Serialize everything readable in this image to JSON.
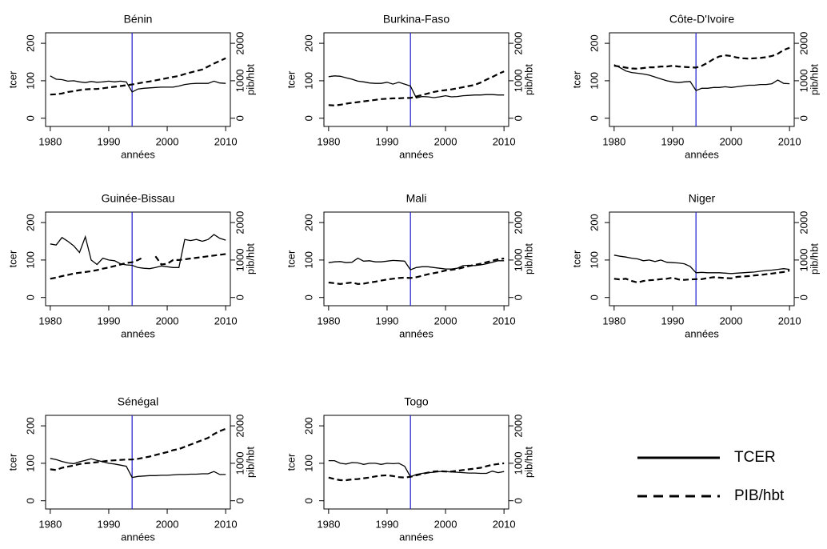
{
  "chart_data": [
    {
      "type": "line",
      "title": "Bénin",
      "xlabel": "années",
      "ylabel": "tcer",
      "y2label": "pib/hbt",
      "xlim": [
        1979.2,
        2010.8
      ],
      "xticks": [
        1980,
        1990,
        2000,
        2010
      ],
      "ylim": [
        -22,
        228
      ],
      "yticks": [
        0,
        100,
        200
      ],
      "y2lim": [
        -220,
        2280
      ],
      "y2ticks": [
        0,
        1000,
        2000
      ],
      "vline": 1994,
      "vline_color": "#2a2ad0",
      "x": [
        1980,
        1981,
        1982,
        1983,
        1984,
        1985,
        1986,
        1987,
        1988,
        1989,
        1990,
        1991,
        1992,
        1993,
        1994,
        1995,
        1996,
        1997,
        1998,
        1999,
        2000,
        2001,
        2002,
        2003,
        2004,
        2005,
        2006,
        2007,
        2008,
        2009,
        2010
      ],
      "series": [
        {
          "name": "TCER",
          "color": "#000000",
          "style": "solid",
          "values": [
            113,
            104,
            103,
            99,
            100,
            97,
            95,
            98,
            96,
            97,
            99,
            97,
            99,
            97,
            70,
            78,
            80,
            81,
            82,
            83,
            83,
            83,
            86,
            90,
            92,
            93,
            93,
            93,
            99,
            94,
            93
          ]
        },
        {
          "name": "PIB/hbt",
          "color": "#000000",
          "style": "dashed",
          "axis": "y2",
          "values": [
            630,
            640,
            660,
            700,
            720,
            750,
            770,
            780,
            780,
            800,
            820,
            840,
            860,
            880,
            900,
            930,
            960,
            980,
            1010,
            1040,
            1070,
            1100,
            1130,
            1180,
            1220,
            1260,
            1300,
            1380,
            1460,
            1530,
            1600
          ]
        }
      ]
    },
    {
      "type": "line",
      "title": "Burkina-Faso",
      "xlabel": "années",
      "ylabel": "tcer",
      "y2label": "pib/hbt",
      "xlim": [
        1979.2,
        2010.8
      ],
      "xticks": [
        1980,
        1990,
        2000,
        2010
      ],
      "ylim": [
        -22,
        228
      ],
      "yticks": [
        0,
        100,
        200
      ],
      "y2lim": [
        -220,
        2280
      ],
      "y2ticks": [
        0,
        1000,
        2000
      ],
      "vline": 1994,
      "vline_color": "#2a2ad0",
      "x": [
        1980,
        1981,
        1982,
        1983,
        1984,
        1985,
        1986,
        1987,
        1988,
        1989,
        1990,
        1991,
        1992,
        1993,
        1994,
        1995,
        1996,
        1997,
        1998,
        1999,
        2000,
        2001,
        2002,
        2003,
        2004,
        2005,
        2006,
        2007,
        2008,
        2009,
        2010
      ],
      "series": [
        {
          "name": "TCER",
          "color": "#000000",
          "style": "solid",
          "values": [
            111,
            113,
            112,
            108,
            104,
            99,
            97,
            94,
            93,
            93,
            96,
            91,
            96,
            91,
            86,
            54,
            58,
            57,
            55,
            57,
            60,
            57,
            58,
            60,
            61,
            62,
            62,
            63,
            63,
            62,
            62
          ]
        },
        {
          "name": "PIB/hbt",
          "color": "#000000",
          "style": "dashed",
          "axis": "y2",
          "values": [
            350,
            340,
            360,
            390,
            410,
            430,
            450,
            470,
            490,
            510,
            520,
            530,
            530,
            540,
            540,
            580,
            620,
            660,
            700,
            730,
            750,
            770,
            800,
            830,
            860,
            890,
            950,
            1030,
            1100,
            1180,
            1250
          ]
        }
      ]
    },
    {
      "type": "line",
      "title": "Côte-D'Ivoire",
      "xlabel": "années",
      "ylabel": "tcer",
      "y2label": "pib/hbt",
      "xlim": [
        1979.2,
        2010.8
      ],
      "xticks": [
        1980,
        1990,
        2000,
        2010
      ],
      "ylim": [
        -22,
        228
      ],
      "yticks": [
        0,
        100,
        200
      ],
      "y2lim": [
        -220,
        2280
      ],
      "y2ticks": [
        0,
        1000,
        2000
      ],
      "vline": 1994,
      "vline_color": "#2a2ad0",
      "x": [
        1980,
        1981,
        1982,
        1983,
        1984,
        1985,
        1986,
        1987,
        1988,
        1989,
        1990,
        1991,
        1992,
        1993,
        1994,
        1995,
        1996,
        1997,
        1998,
        1999,
        2000,
        2001,
        2002,
        2003,
        2004,
        2005,
        2006,
        2007,
        2008,
        2009,
        2010
      ],
      "series": [
        {
          "name": "TCER",
          "color": "#000000",
          "style": "solid",
          "values": [
            143,
            135,
            126,
            122,
            120,
            118,
            115,
            110,
            105,
            100,
            97,
            95,
            97,
            98,
            74,
            80,
            80,
            82,
            82,
            84,
            82,
            84,
            86,
            88,
            88,
            90,
            90,
            92,
            102,
            93,
            92
          ]
        },
        {
          "name": "PIB/hbt",
          "color": "#000000",
          "style": "dashed",
          "axis": "y2",
          "values": [
            1400,
            1380,
            1350,
            1330,
            1320,
            1340,
            1360,
            1360,
            1380,
            1380,
            1400,
            1380,
            1370,
            1360,
            1350,
            1400,
            1480,
            1580,
            1650,
            1680,
            1660,
            1620,
            1600,
            1590,
            1600,
            1610,
            1630,
            1660,
            1720,
            1820,
            1880
          ]
        }
      ]
    },
    {
      "type": "line",
      "title": "Guinée-Bissau",
      "xlabel": "années",
      "ylabel": "tcer",
      "y2label": "pib/hbt",
      "xlim": [
        1979.2,
        2010.8
      ],
      "xticks": [
        1980,
        1990,
        2000,
        2010
      ],
      "ylim": [
        -22,
        228
      ],
      "yticks": [
        0,
        100,
        200
      ],
      "y2lim": [
        -220,
        2280
      ],
      "y2ticks": [
        0,
        1000,
        2000
      ],
      "vline": 1994,
      "vline_color": "#2a2ad0",
      "x": [
        1980,
        1981,
        1982,
        1983,
        1984,
        1985,
        1986,
        1987,
        1988,
        1989,
        1990,
        1991,
        1992,
        1993,
        1994,
        1995,
        1996,
        1997,
        1998,
        1999,
        2000,
        2001,
        2002,
        2003,
        2004,
        2005,
        2006,
        2007,
        2008,
        2009,
        2010
      ],
      "series": [
        {
          "name": "TCER",
          "color": "#000000",
          "style": "solid",
          "values": [
            143,
            140,
            160,
            150,
            138,
            120,
            162,
            100,
            88,
            105,
            100,
            98,
            90,
            87,
            86,
            80,
            78,
            77,
            80,
            84,
            82,
            80,
            80,
            155,
            152,
            155,
            150,
            155,
            168,
            158,
            153
          ]
        },
        {
          "name": "PIB/hbt",
          "color": "#000000",
          "style": "dashed",
          "axis": "y2",
          "values": [
            500,
            530,
            570,
            600,
            640,
            660,
            680,
            700,
            730,
            770,
            800,
            840,
            880,
            920,
            940,
            1000,
            1080,
            null,
            1100,
            880,
            900,
            1000,
            1000,
            1020,
            1040,
            1060,
            1080,
            1100,
            1120,
            1140,
            1160
          ]
        }
      ]
    },
    {
      "type": "line",
      "title": "Mali",
      "xlabel": "années",
      "ylabel": "tcer",
      "y2label": "pib/hbt",
      "xlim": [
        1979.2,
        2010.8
      ],
      "xticks": [
        1980,
        1990,
        2000,
        2010
      ],
      "ylim": [
        -22,
        228
      ],
      "yticks": [
        0,
        100,
        200
      ],
      "y2lim": [
        -220,
        2280
      ],
      "y2ticks": [
        0,
        1000,
        2000
      ],
      "vline": 1994,
      "vline_color": "#2a2ad0",
      "x": [
        1980,
        1981,
        1982,
        1983,
        1984,
        1985,
        1986,
        1987,
        1988,
        1989,
        1990,
        1991,
        1992,
        1993,
        1994,
        1995,
        1996,
        1997,
        1998,
        1999,
        2000,
        2001,
        2002,
        2003,
        2004,
        2005,
        2006,
        2007,
        2008,
        2009,
        2010
      ],
      "series": [
        {
          "name": "TCER",
          "color": "#000000",
          "style": "solid",
          "values": [
            93,
            95,
            96,
            93,
            94,
            105,
            97,
            98,
            95,
            95,
            97,
            99,
            98,
            97,
            74,
            80,
            82,
            82,
            80,
            78,
            76,
            76,
            78,
            85,
            86,
            85,
            87,
            90,
            94,
            98,
            98
          ]
        },
        {
          "name": "PIB/hbt",
          "color": "#000000",
          "style": "dashed",
          "axis": "y2",
          "values": [
            400,
            380,
            360,
            380,
            400,
            360,
            370,
            400,
            420,
            450,
            480,
            500,
            520,
            530,
            520,
            540,
            580,
            620,
            650,
            680,
            720,
            740,
            760,
            800,
            840,
            870,
            900,
            940,
            980,
            1020,
            1040
          ]
        }
      ]
    },
    {
      "type": "line",
      "title": "Niger",
      "xlabel": "années",
      "ylabel": "tcer",
      "y2label": "pib/hbt",
      "xlim": [
        1979.2,
        2010.8
      ],
      "xticks": [
        1980,
        1990,
        2000,
        2010
      ],
      "ylim": [
        -22,
        228
      ],
      "yticks": [
        0,
        100,
        200
      ],
      "y2lim": [
        -220,
        2280
      ],
      "y2ticks": [
        0,
        1000,
        2000
      ],
      "vline": 1994,
      "vline_color": "#2a2ad0",
      "x": [
        1980,
        1981,
        1982,
        1983,
        1984,
        1985,
        1986,
        1987,
        1988,
        1989,
        1990,
        1991,
        1992,
        1993,
        1994,
        1995,
        1996,
        1997,
        1998,
        1999,
        2000,
        2001,
        2002,
        2003,
        2004,
        2005,
        2006,
        2007,
        2008,
        2009,
        2010
      ],
      "series": [
        {
          "name": "TCER",
          "color": "#000000",
          "style": "solid",
          "values": [
            113,
            110,
            108,
            105,
            103,
            98,
            100,
            96,
            100,
            94,
            93,
            92,
            90,
            83,
            66,
            67,
            66,
            66,
            66,
            65,
            64,
            65,
            66,
            67,
            68,
            70,
            72,
            73,
            75,
            77,
            75
          ]
        },
        {
          "name": "PIB/hbt",
          "color": "#000000",
          "style": "dashed",
          "axis": "y2",
          "values": [
            500,
            480,
            500,
            440,
            400,
            440,
            460,
            470,
            490,
            500,
            530,
            480,
            470,
            480,
            490,
            490,
            520,
            540,
            530,
            520,
            510,
            550,
            560,
            570,
            590,
            600,
            620,
            640,
            660,
            680,
            720
          ]
        }
      ]
    },
    {
      "type": "line",
      "title": "Sénégal",
      "xlabel": "années",
      "ylabel": "tcer",
      "y2label": "pib/hbt",
      "xlim": [
        1979.2,
        2010.8
      ],
      "xticks": [
        1980,
        1990,
        2000,
        2010
      ],
      "ylim": [
        -22,
        228
      ],
      "yticks": [
        0,
        100,
        200
      ],
      "y2lim": [
        -220,
        2280
      ],
      "y2ticks": [
        0,
        1000,
        2000
      ],
      "vline": 1994,
      "vline_color": "#2a2ad0",
      "x": [
        1980,
        1981,
        1982,
        1983,
        1984,
        1985,
        1986,
        1987,
        1988,
        1989,
        1990,
        1991,
        1992,
        1993,
        1994,
        1995,
        1996,
        1997,
        1998,
        1999,
        2000,
        2001,
        2002,
        2003,
        2004,
        2005,
        2006,
        2007,
        2008,
        2009,
        2010
      ],
      "series": [
        {
          "name": "TCER",
          "color": "#000000",
          "style": "solid",
          "values": [
            113,
            110,
            105,
            101,
            99,
            104,
            108,
            112,
            108,
            104,
            100,
            98,
            95,
            92,
            62,
            65,
            66,
            67,
            67,
            68,
            68,
            69,
            70,
            70,
            71,
            71,
            72,
            72,
            78,
            70,
            70
          ]
        },
        {
          "name": "PIB/hbt",
          "color": "#000000",
          "style": "dashed",
          "axis": "y2",
          "values": [
            840,
            820,
            880,
            910,
            940,
            980,
            1000,
            1010,
            1030,
            1050,
            1070,
            1080,
            1090,
            1100,
            1100,
            1120,
            1150,
            1180,
            1220,
            1260,
            1300,
            1350,
            1380,
            1440,
            1500,
            1560,
            1620,
            1680,
            1780,
            1860,
            1920
          ]
        }
      ]
    },
    {
      "type": "line",
      "title": "Togo",
      "xlabel": "années",
      "ylabel": "tcer",
      "y2label": "pib/hbt",
      "xlim": [
        1979.2,
        2010.8
      ],
      "xticks": [
        1980,
        1990,
        2000,
        2010
      ],
      "ylim": [
        -22,
        228
      ],
      "yticks": [
        0,
        100,
        200
      ],
      "y2lim": [
        -220,
        2280
      ],
      "y2ticks": [
        0,
        1000,
        2000
      ],
      "vline": 1994,
      "vline_color": "#2a2ad0",
      "x": [
        1980,
        1981,
        1982,
        1983,
        1984,
        1985,
        1986,
        1987,
        1988,
        1989,
        1990,
        1991,
        1992,
        1993,
        1994,
        1995,
        1996,
        1997,
        1998,
        1999,
        2000,
        2001,
        2002,
        2003,
        2004,
        2005,
        2006,
        2007,
        2008,
        2009,
        2010
      ],
      "series": [
        {
          "name": "TCER",
          "color": "#000000",
          "style": "solid",
          "values": [
            107,
            107,
            100,
            98,
            102,
            101,
            97,
            100,
            100,
            97,
            100,
            99,
            100,
            92,
            64,
            70,
            73,
            75,
            76,
            78,
            78,
            77,
            76,
            75,
            74,
            74,
            73,
            73,
            79,
            75,
            78
          ]
        },
        {
          "name": "PIB/hbt",
          "color": "#000000",
          "style": "dashed",
          "axis": "y2",
          "values": [
            620,
            580,
            550,
            550,
            570,
            580,
            600,
            620,
            650,
            670,
            680,
            660,
            630,
            620,
            640,
            680,
            720,
            750,
            780,
            790,
            780,
            780,
            800,
            820,
            840,
            860,
            880,
            920,
            960,
            980,
            1000
          ]
        }
      ]
    }
  ]
}
